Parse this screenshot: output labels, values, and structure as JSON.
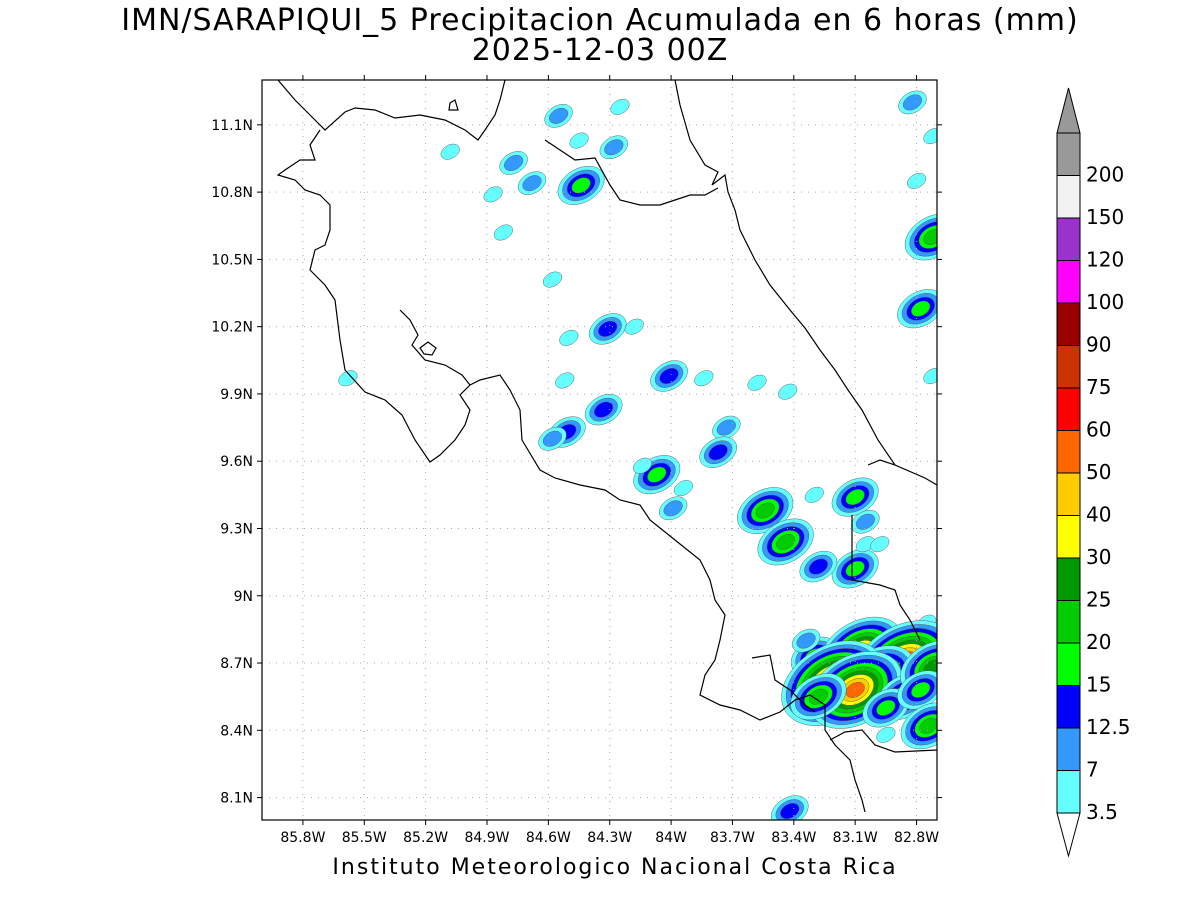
{
  "title": {
    "line1": "IMN/SARAPIQUI_5 Precipitacion Acumulada en 6 horas (mm)",
    "line2": "2025-12-03 00Z"
  },
  "credit": "Instituto Meteorologico Nacional Costa Rica",
  "map": {
    "lon_range": [
      -86.0,
      -82.7
    ],
    "lat_range": [
      8.0,
      11.3
    ],
    "lon_ticks": [
      {
        "value": -85.8,
        "label": "85.8W"
      },
      {
        "value": -85.5,
        "label": "85.5W"
      },
      {
        "value": -85.2,
        "label": "85.2W"
      },
      {
        "value": -84.9,
        "label": "84.9W"
      },
      {
        "value": -84.6,
        "label": "84.6W"
      },
      {
        "value": -84.3,
        "label": "84.3W"
      },
      {
        "value": -84.0,
        "label": "84W"
      },
      {
        "value": -83.7,
        "label": "83.7W"
      },
      {
        "value": -83.4,
        "label": "83.4W"
      },
      {
        "value": -83.1,
        "label": "83.1W"
      },
      {
        "value": -82.8,
        "label": "82.8W"
      }
    ],
    "lat_ticks": [
      {
        "value": 8.1,
        "label": "8.1N"
      },
      {
        "value": 8.4,
        "label": "8.4N"
      },
      {
        "value": 8.7,
        "label": "8.7N"
      },
      {
        "value": 9.0,
        "label": "9N"
      },
      {
        "value": 9.3,
        "label": "9.3N"
      },
      {
        "value": 9.6,
        "label": "9.6N"
      },
      {
        "value": 9.9,
        "label": "9.9N"
      },
      {
        "value": 10.2,
        "label": "10.2N"
      },
      {
        "value": 10.5,
        "label": "10.5N"
      },
      {
        "value": 10.8,
        "label": "10.8N"
      },
      {
        "value": 11.1,
        "label": "11.1N"
      }
    ],
    "grid": "dotted",
    "coastline_color": "#000000"
  },
  "colorbar": {
    "levels": [
      {
        "label": "3.5",
        "color": "#66ffff"
      },
      {
        "label": "7",
        "color": "#3399ff"
      },
      {
        "label": "12.5",
        "color": "#0000ff"
      },
      {
        "label": "15",
        "color": "#00ff00"
      },
      {
        "label": "20",
        "color": "#00cc00"
      },
      {
        "label": "25",
        "color": "#009900"
      },
      {
        "label": "30",
        "color": "#ffff00"
      },
      {
        "label": "40",
        "color": "#ffcc00"
      },
      {
        "label": "50",
        "color": "#ff6600"
      },
      {
        "label": "60",
        "color": "#ff0000"
      },
      {
        "label": "75",
        "color": "#cc3300"
      },
      {
        "label": "90",
        "color": "#990000"
      },
      {
        "label": "100",
        "color": "#ff00ff"
      },
      {
        "label": "120",
        "color": "#9933cc"
      },
      {
        "label": "150",
        "color": "#f2f2f2"
      },
      {
        "label": "200",
        "color": "#999999"
      }
    ],
    "below_color": "#ffffff",
    "above_color": "#999999"
  },
  "precip_cells": [
    {
      "lon": -84.25,
      "lat": 11.18,
      "level": 0
    },
    {
      "lon": -84.55,
      "lat": 11.14,
      "level": 1
    },
    {
      "lon": -84.45,
      "lat": 11.03,
      "level": 0
    },
    {
      "lon": -84.28,
      "lat": 11.0,
      "level": 1
    },
    {
      "lon": -85.08,
      "lat": 10.98,
      "level": 0
    },
    {
      "lon": -84.77,
      "lat": 10.93,
      "level": 1
    },
    {
      "lon": -84.68,
      "lat": 10.84,
      "level": 1
    },
    {
      "lon": -84.44,
      "lat": 10.83,
      "level": 3
    },
    {
      "lon": -84.87,
      "lat": 10.79,
      "level": 0
    },
    {
      "lon": -84.82,
      "lat": 10.62,
      "level": 0
    },
    {
      "lon": -84.58,
      "lat": 10.41,
      "level": 0
    },
    {
      "lon": -84.31,
      "lat": 10.19,
      "level": 2
    },
    {
      "lon": -84.18,
      "lat": 10.2,
      "level": 0
    },
    {
      "lon": -84.5,
      "lat": 10.15,
      "level": 0
    },
    {
      "lon": -85.58,
      "lat": 9.97,
      "level": 0
    },
    {
      "lon": -84.52,
      "lat": 9.96,
      "level": 0
    },
    {
      "lon": -84.01,
      "lat": 9.98,
      "level": 2
    },
    {
      "lon": -83.84,
      "lat": 9.97,
      "level": 0
    },
    {
      "lon": -83.58,
      "lat": 9.95,
      "level": 0
    },
    {
      "lon": -84.33,
      "lat": 9.83,
      "level": 2
    },
    {
      "lon": -84.51,
      "lat": 9.73,
      "level": 2
    },
    {
      "lon": -84.58,
      "lat": 9.7,
      "level": 1
    },
    {
      "lon": -83.73,
      "lat": 9.75,
      "level": 1
    },
    {
      "lon": -83.77,
      "lat": 9.64,
      "level": 2
    },
    {
      "lon": -83.43,
      "lat": 9.91,
      "level": 0
    },
    {
      "lon": -84.07,
      "lat": 9.54,
      "level": 3
    },
    {
      "lon": -83.94,
      "lat": 9.48,
      "level": 0
    },
    {
      "lon": -83.99,
      "lat": 9.39,
      "level": 1
    },
    {
      "lon": -84.14,
      "lat": 9.58,
      "level": 0
    },
    {
      "lon": -83.54,
      "lat": 9.38,
      "level": 4
    },
    {
      "lon": -83.44,
      "lat": 9.24,
      "level": 4
    },
    {
      "lon": -83.1,
      "lat": 9.44,
      "level": 3
    },
    {
      "lon": -83.05,
      "lat": 9.33,
      "level": 1
    },
    {
      "lon": -83.3,
      "lat": 9.45,
      "level": 0
    },
    {
      "lon": -83.1,
      "lat": 9.12,
      "level": 3
    },
    {
      "lon": -83.28,
      "lat": 9.13,
      "level": 2
    },
    {
      "lon": -83.05,
      "lat": 9.23,
      "level": 0
    },
    {
      "lon": -82.98,
      "lat": 9.23,
      "level": 0
    },
    {
      "lon": -82.82,
      "lat": 11.2,
      "level": 1
    },
    {
      "lon": -82.72,
      "lat": 11.05,
      "level": 0
    },
    {
      "lon": -82.72,
      "lat": 10.6,
      "level": 4
    },
    {
      "lon": -82.8,
      "lat": 10.85,
      "level": 0
    },
    {
      "lon": -82.78,
      "lat": 10.28,
      "level": 3
    },
    {
      "lon": -82.72,
      "lat": 9.98,
      "level": 0
    },
    {
      "lon": -82.75,
      "lat": 8.88,
      "level": 0
    },
    {
      "lon": -82.8,
      "lat": 8.8,
      "level": 0
    },
    {
      "lon": -83.3,
      "lat": 8.73,
      "level": 3
    },
    {
      "lon": -83.07,
      "lat": 8.75,
      "level": 7
    },
    {
      "lon": -82.92,
      "lat": 8.71,
      "level": 5
    },
    {
      "lon": -82.86,
      "lat": 8.7,
      "level": 9
    },
    {
      "lon": -82.99,
      "lat": 8.64,
      "level": 6
    },
    {
      "lon": -83.21,
      "lat": 8.61,
      "level": 9
    },
    {
      "lon": -83.1,
      "lat": 8.58,
      "level": 8
    },
    {
      "lon": -83.28,
      "lat": 8.55,
      "level": 4
    },
    {
      "lon": -82.86,
      "lat": 8.55,
      "level": 4
    },
    {
      "lon": -82.95,
      "lat": 8.5,
      "level": 3
    },
    {
      "lon": -82.72,
      "lat": 8.68,
      "level": 5
    },
    {
      "lon": -82.78,
      "lat": 8.58,
      "level": 3
    },
    {
      "lon": -82.74,
      "lat": 8.42,
      "level": 4
    },
    {
      "lon": -82.95,
      "lat": 8.38,
      "level": 0
    },
    {
      "lon": -83.34,
      "lat": 8.8,
      "level": 1
    },
    {
      "lon": -83.42,
      "lat": 8.04,
      "level": 2
    }
  ]
}
